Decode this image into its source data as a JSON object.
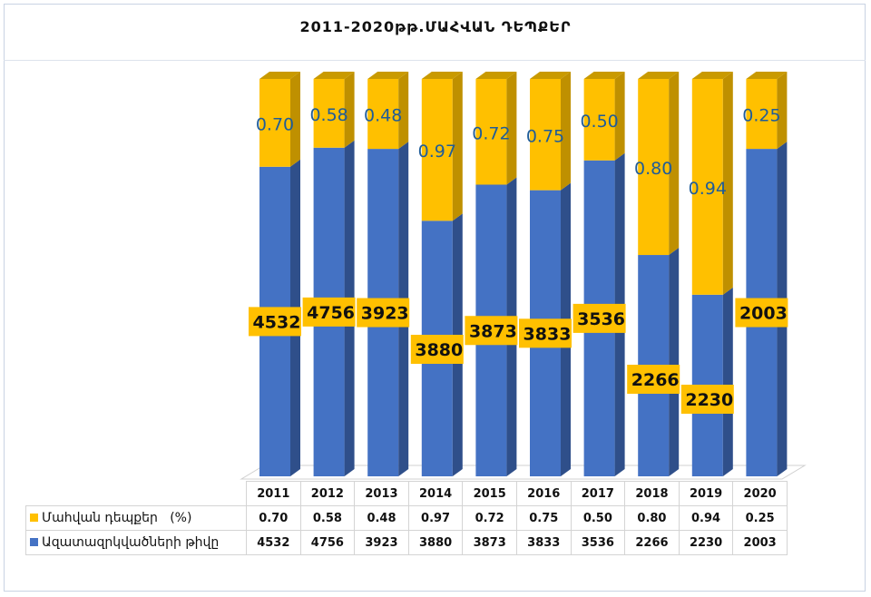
{
  "chart_data": {
    "type": "bar",
    "stacked": true,
    "title": "2011-2020թթ.ՄԱՀՎԱՆ ԴԵՊՔԵՐ",
    "categories": [
      "2011",
      "2012",
      "2013",
      "2014",
      "2015",
      "2016",
      "2017",
      "2018",
      "2019",
      "2020"
    ],
    "series": [
      {
        "name": "Մահվան դեպքեր   (%)",
        "color": "#ffc000",
        "values": [
          "0.70",
          "0.58",
          "0.48",
          "0.97",
          "0.72",
          "0.75",
          "0.50",
          "0.80",
          "0.94",
          "0.25"
        ]
      },
      {
        "name": "Ազատազրկվածների թիվը",
        "color": "#4472c4",
        "values": [
          "4532",
          "4756",
          "3923",
          "3880",
          "3873",
          "3833",
          "3536",
          "2266",
          "2230",
          "2003"
        ]
      }
    ],
    "legend": "data-table-bottom",
    "xlabel": "",
    "ylabel": ""
  }
}
